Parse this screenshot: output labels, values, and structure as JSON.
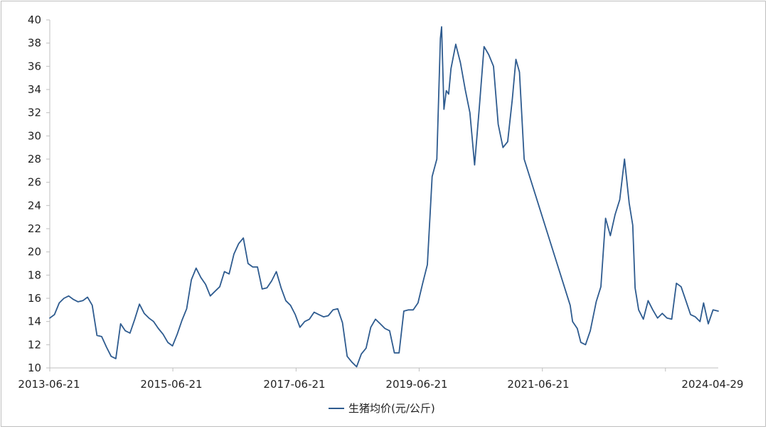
{
  "chart_data": {
    "type": "line",
    "x_type": "date",
    "xlim": [
      "2013-06-21",
      "2024-04-29"
    ],
    "ylim": [
      10,
      40
    ],
    "y_ticks": [
      10,
      12,
      14,
      16,
      18,
      20,
      22,
      24,
      26,
      28,
      30,
      32,
      34,
      36,
      38,
      40
    ],
    "x_tick_labels": [
      "2013-06-21",
      "2015-06-21",
      "2017-06-21",
      "2019-06-21",
      "2021-06-21",
      "2024-04-29"
    ],
    "legend_position": "bottom-center",
    "grid": false,
    "series": [
      {
        "name": "生猪均价(元/公斤)",
        "color": "#2e5b8f",
        "points": [
          [
            "2013-06-21",
            14.3
          ],
          [
            "2013-07-19",
            14.6
          ],
          [
            "2013-08-16",
            15.6
          ],
          [
            "2013-09-13",
            16.0
          ],
          [
            "2013-10-11",
            16.2
          ],
          [
            "2013-11-08",
            15.9
          ],
          [
            "2013-12-06",
            15.7
          ],
          [
            "2014-01-03",
            15.8
          ],
          [
            "2014-01-31",
            16.1
          ],
          [
            "2014-02-28",
            15.4
          ],
          [
            "2014-03-28",
            12.8
          ],
          [
            "2014-04-25",
            12.7
          ],
          [
            "2014-05-23",
            11.8
          ],
          [
            "2014-06-20",
            11.0
          ],
          [
            "2014-07-18",
            10.8
          ],
          [
            "2014-08-15",
            13.8
          ],
          [
            "2014-09-12",
            13.2
          ],
          [
            "2014-10-10",
            13.0
          ],
          [
            "2014-11-07",
            14.2
          ],
          [
            "2014-12-05",
            15.5
          ],
          [
            "2015-01-02",
            14.7
          ],
          [
            "2015-01-30",
            14.3
          ],
          [
            "2015-02-27",
            14.0
          ],
          [
            "2015-03-27",
            13.4
          ],
          [
            "2015-04-24",
            12.9
          ],
          [
            "2015-05-22",
            12.2
          ],
          [
            "2015-06-19",
            11.9
          ],
          [
            "2015-07-17",
            12.9
          ],
          [
            "2015-08-14",
            14.1
          ],
          [
            "2015-09-11",
            15.1
          ],
          [
            "2015-10-09",
            17.6
          ],
          [
            "2015-11-06",
            18.6
          ],
          [
            "2015-12-04",
            17.8
          ],
          [
            "2016-01-01",
            17.2
          ],
          [
            "2016-01-29",
            16.2
          ],
          [
            "2016-02-26",
            16.6
          ],
          [
            "2016-03-25",
            17.0
          ],
          [
            "2016-04-22",
            18.3
          ],
          [
            "2016-05-20",
            18.1
          ],
          [
            "2016-06-17",
            19.8
          ],
          [
            "2016-07-15",
            20.7
          ],
          [
            "2016-08-12",
            21.2
          ],
          [
            "2016-09-09",
            19.0
          ],
          [
            "2016-10-07",
            18.7
          ],
          [
            "2016-11-04",
            18.7
          ],
          [
            "2016-12-02",
            16.8
          ],
          [
            "2016-12-30",
            16.9
          ],
          [
            "2017-01-27",
            17.5
          ],
          [
            "2017-02-24",
            18.3
          ],
          [
            "2017-03-24",
            16.9
          ],
          [
            "2017-04-21",
            15.8
          ],
          [
            "2017-05-19",
            15.4
          ],
          [
            "2017-06-16",
            14.6
          ],
          [
            "2017-07-14",
            13.5
          ],
          [
            "2017-08-11",
            14.0
          ],
          [
            "2017-09-08",
            14.2
          ],
          [
            "2017-10-06",
            14.8
          ],
          [
            "2017-11-03",
            14.6
          ],
          [
            "2017-12-01",
            14.4
          ],
          [
            "2017-12-29",
            14.5
          ],
          [
            "2018-01-26",
            15.0
          ],
          [
            "2018-02-23",
            15.1
          ],
          [
            "2018-03-23",
            13.9
          ],
          [
            "2018-04-20",
            11.0
          ],
          [
            "2018-05-18",
            10.5
          ],
          [
            "2018-06-15",
            10.1
          ],
          [
            "2018-07-13",
            11.2
          ],
          [
            "2018-08-10",
            11.7
          ],
          [
            "2018-09-07",
            13.5
          ],
          [
            "2018-10-05",
            14.2
          ],
          [
            "2018-11-02",
            13.8
          ],
          [
            "2018-11-30",
            13.4
          ],
          [
            "2018-12-28",
            13.2
          ],
          [
            "2019-01-25",
            11.3
          ],
          [
            "2019-02-22",
            11.3
          ],
          [
            "2019-03-22",
            14.9
          ],
          [
            "2019-04-19",
            15.0
          ],
          [
            "2019-05-17",
            15.0
          ],
          [
            "2019-06-14",
            15.6
          ],
          [
            "2019-07-12",
            17.3
          ],
          [
            "2019-08-09",
            18.9
          ],
          [
            "2019-09-06",
            26.5
          ],
          [
            "2019-10-04",
            28.0
          ],
          [
            "2019-10-25",
            38.4
          ],
          [
            "2019-11-01",
            39.4
          ],
          [
            "2019-11-15",
            32.3
          ],
          [
            "2019-11-29",
            33.9
          ],
          [
            "2019-12-13",
            33.6
          ],
          [
            "2019-12-27",
            35.8
          ],
          [
            "2020-01-24",
            37.9
          ],
          [
            "2020-02-21",
            36.3
          ],
          [
            "2020-03-20",
            34.0
          ],
          [
            "2020-04-17",
            32.0
          ],
          [
            "2020-05-15",
            27.5
          ],
          [
            "2020-06-12",
            32.5
          ],
          [
            "2020-07-10",
            37.7
          ],
          [
            "2020-08-07",
            37.0
          ],
          [
            "2020-09-04",
            36.0
          ],
          [
            "2020-10-02",
            31.0
          ],
          [
            "2020-10-30",
            29.0
          ],
          [
            "2020-11-27",
            29.5
          ],
          [
            "2020-12-25",
            33.2
          ],
          [
            "2021-01-15",
            36.6
          ],
          [
            "2021-02-05",
            35.5
          ],
          [
            "2021-03-05",
            28.0
          ],
          [
            "2021-12-03",
            15.4
          ],
          [
            "2021-12-17",
            14.0
          ],
          [
            "2022-01-14",
            13.4
          ],
          [
            "2022-02-04",
            12.2
          ],
          [
            "2022-03-04",
            12.0
          ],
          [
            "2022-04-01",
            13.2
          ],
          [
            "2022-05-06",
            15.7
          ],
          [
            "2022-06-03",
            17.0
          ],
          [
            "2022-07-01",
            22.9
          ],
          [
            "2022-07-29",
            21.4
          ],
          [
            "2022-08-26",
            23.2
          ],
          [
            "2022-09-23",
            24.5
          ],
          [
            "2022-10-21",
            28.0
          ],
          [
            "2022-11-18",
            24.2
          ],
          [
            "2022-12-09",
            22.3
          ],
          [
            "2022-12-23",
            16.9
          ],
          [
            "2023-01-13",
            15.0
          ],
          [
            "2023-02-10",
            14.2
          ],
          [
            "2023-03-10",
            15.8
          ],
          [
            "2023-04-07",
            15.0
          ],
          [
            "2023-05-05",
            14.3
          ],
          [
            "2023-06-02",
            14.7
          ],
          [
            "2023-06-30",
            14.3
          ],
          [
            "2023-07-28",
            14.2
          ],
          [
            "2023-08-25",
            17.3
          ],
          [
            "2023-09-22",
            17.0
          ],
          [
            "2023-10-20",
            15.8
          ],
          [
            "2023-11-17",
            14.6
          ],
          [
            "2023-12-15",
            14.4
          ],
          [
            "2024-01-12",
            14.0
          ],
          [
            "2024-02-02",
            15.6
          ],
          [
            "2024-03-01",
            13.8
          ],
          [
            "2024-03-29",
            15.0
          ],
          [
            "2024-04-29",
            14.9
          ]
        ]
      }
    ]
  }
}
